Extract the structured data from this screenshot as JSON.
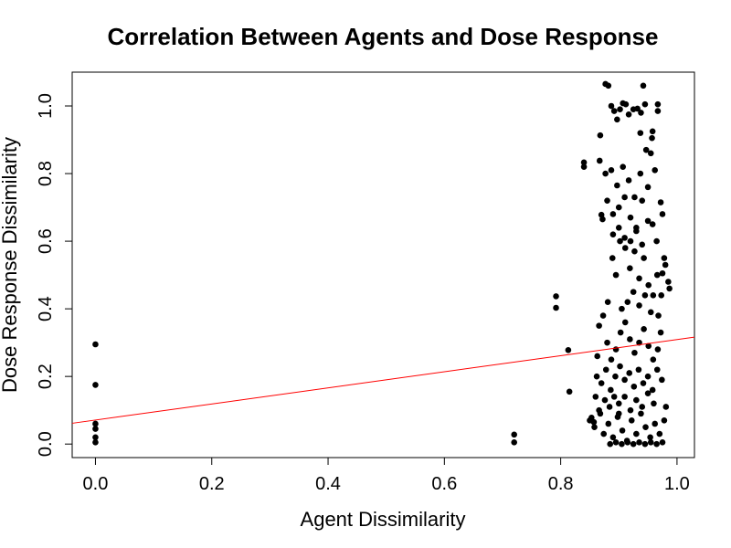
{
  "chart_data": {
    "type": "scatter",
    "title": "Correlation Between Agents and Dose Response",
    "xlabel": "Agent Dissimilarity",
    "ylabel": "Dose Response Dissimilarity",
    "xlim": [
      -0.04,
      1.03
    ],
    "ylim": [
      -0.04,
      1.1
    ],
    "xticks": [
      "0.0",
      "0.2",
      "0.4",
      "0.6",
      "0.8",
      "1.0"
    ],
    "yticks": [
      "0.0",
      "0.2",
      "0.4",
      "0.6",
      "0.8",
      "1.0"
    ],
    "grid": false,
    "regression_line": {
      "color": "#ff0000",
      "intercept": 0.071,
      "slope": 0.238
    },
    "series": [
      {
        "color": "#000000",
        "points": [
          [
            0.0,
            0.295
          ],
          [
            0.0,
            0.175
          ],
          [
            0.0,
            0.06
          ],
          [
            0.0,
            0.045
          ],
          [
            0.0,
            0.02
          ],
          [
            0.0,
            0.005
          ],
          [
            0.72,
            0.028
          ],
          [
            0.72,
            0.005
          ],
          [
            0.792,
            0.437
          ],
          [
            0.792,
            0.403
          ],
          [
            0.813,
            0.278
          ],
          [
            0.815,
            0.155
          ],
          [
            0.84,
            0.833
          ],
          [
            0.84,
            0.82
          ],
          [
            0.853,
            0.078
          ],
          [
            0.857,
            0.065
          ],
          [
            0.863,
            0.26
          ],
          [
            0.867,
            0.838
          ],
          [
            0.868,
            0.913
          ],
          [
            0.87,
            0.678
          ],
          [
            0.872,
            0.665
          ],
          [
            0.877,
            1.065
          ],
          [
            0.882,
            1.06
          ],
          [
            0.887,
            1.0
          ],
          [
            0.892,
            0.985
          ],
          [
            0.897,
            0.96
          ],
          [
            0.902,
            0.99
          ],
          [
            0.907,
            1.008
          ],
          [
            0.912,
            1.005
          ],
          [
            0.917,
            0.975
          ],
          [
            0.925,
            0.99
          ],
          [
            0.932,
            0.992
          ],
          [
            0.938,
            0.98
          ],
          [
            0.942,
            1.06
          ],
          [
            0.945,
            1.005
          ],
          [
            0.957,
            0.905
          ],
          [
            0.967,
            1.005
          ],
          [
            0.967,
            0.985
          ],
          [
            0.937,
            0.92
          ],
          [
            0.947,
            0.87
          ],
          [
            0.955,
            0.86
          ],
          [
            0.958,
            0.925
          ],
          [
            0.877,
            0.8
          ],
          [
            0.887,
            0.81
          ],
          [
            0.897,
            0.765
          ],
          [
            0.907,
            0.82
          ],
          [
            0.917,
            0.78
          ],
          [
            0.927,
            0.73
          ],
          [
            0.937,
            0.8
          ],
          [
            0.95,
            0.76
          ],
          [
            0.962,
            0.81
          ],
          [
            0.972,
            0.715
          ],
          [
            0.975,
            0.68
          ],
          [
            0.88,
            0.72
          ],
          [
            0.89,
            0.68
          ],
          [
            0.9,
            0.7
          ],
          [
            0.91,
            0.73
          ],
          [
            0.92,
            0.67
          ],
          [
            0.93,
            0.64
          ],
          [
            0.94,
            0.72
          ],
          [
            0.95,
            0.66
          ],
          [
            0.958,
            0.65
          ],
          [
            0.965,
            0.6
          ],
          [
            0.978,
            0.55
          ],
          [
            0.985,
            0.48
          ],
          [
            0.987,
            0.46
          ],
          [
            0.98,
            0.53
          ],
          [
            0.975,
            0.505
          ],
          [
            0.973,
            0.44
          ],
          [
            0.968,
            0.38
          ],
          [
            0.972,
            0.33
          ],
          [
            0.866,
            0.35
          ],
          [
            0.873,
            0.38
          ],
          [
            0.881,
            0.42
          ],
          [
            0.889,
            0.55
          ],
          [
            0.895,
            0.5
          ],
          [
            0.902,
            0.6
          ],
          [
            0.911,
            0.58
          ],
          [
            0.919,
            0.52
          ],
          [
            0.927,
            0.57
          ],
          [
            0.935,
            0.49
          ],
          [
            0.943,
            0.55
          ],
          [
            0.951,
            0.47
          ],
          [
            0.959,
            0.44
          ],
          [
            0.966,
            0.5
          ],
          [
            0.88,
            0.3
          ],
          [
            0.887,
            0.25
          ],
          [
            0.895,
            0.28
          ],
          [
            0.903,
            0.33
          ],
          [
            0.911,
            0.36
          ],
          [
            0.919,
            0.31
          ],
          [
            0.927,
            0.27
          ],
          [
            0.935,
            0.3
          ],
          [
            0.943,
            0.34
          ],
          [
            0.951,
            0.29
          ],
          [
            0.959,
            0.25
          ],
          [
            0.967,
            0.28
          ],
          [
            0.862,
            0.2
          ],
          [
            0.87,
            0.18
          ],
          [
            0.878,
            0.22
          ],
          [
            0.886,
            0.16
          ],
          [
            0.894,
            0.2
          ],
          [
            0.902,
            0.23
          ],
          [
            0.91,
            0.19
          ],
          [
            0.918,
            0.21
          ],
          [
            0.926,
            0.17
          ],
          [
            0.934,
            0.22
          ],
          [
            0.942,
            0.18
          ],
          [
            0.95,
            0.2
          ],
          [
            0.958,
            0.16
          ],
          [
            0.966,
            0.22
          ],
          [
            0.974,
            0.19
          ],
          [
            0.981,
            0.11
          ],
          [
            0.85,
            0.07
          ],
          [
            0.858,
            0.05
          ],
          [
            0.866,
            0.1
          ],
          [
            0.874,
            0.03
          ],
          [
            0.882,
            0.06
          ],
          [
            0.89,
            0.02
          ],
          [
            0.898,
            0.08
          ],
          [
            0.906,
            0.04
          ],
          [
            0.914,
            0.01
          ],
          [
            0.922,
            0.07
          ],
          [
            0.93,
            0.03
          ],
          [
            0.938,
            0.09
          ],
          [
            0.946,
            0.05
          ],
          [
            0.954,
            0.02
          ],
          [
            0.962,
            0.06
          ],
          [
            0.97,
            0.03
          ],
          [
            0.978,
            0.07
          ],
          [
            0.9,
            0.12
          ],
          [
            0.91,
            0.14
          ],
          [
            0.92,
            0.1
          ],
          [
            0.93,
            0.13
          ],
          [
            0.94,
            0.11
          ],
          [
            0.95,
            0.15
          ],
          [
            0.96,
            0.12
          ],
          [
            0.905,
            0.4
          ],
          [
            0.915,
            0.42
          ],
          [
            0.925,
            0.45
          ],
          [
            0.935,
            0.41
          ],
          [
            0.945,
            0.44
          ],
          [
            0.955,
            0.39
          ],
          [
            0.89,
            0.62
          ],
          [
            0.9,
            0.64
          ],
          [
            0.91,
            0.61
          ],
          [
            0.92,
            0.6
          ],
          [
            0.93,
            0.63
          ],
          [
            0.94,
            0.59
          ],
          [
            0.885,
            0.0
          ],
          [
            0.895,
            0.005
          ],
          [
            0.905,
            0.0
          ],
          [
            0.915,
            0.005
          ],
          [
            0.925,
            0.0
          ],
          [
            0.935,
            0.005
          ],
          [
            0.945,
            0.0
          ],
          [
            0.955,
            0.005
          ],
          [
            0.965,
            0.0
          ],
          [
            0.975,
            0.005
          ],
          [
            0.86,
            0.14
          ],
          [
            0.868,
            0.09
          ],
          [
            0.876,
            0.13
          ],
          [
            0.884,
            0.11
          ],
          [
            0.892,
            0.14
          ],
          [
            0.9,
            0.09
          ]
        ]
      }
    ]
  }
}
